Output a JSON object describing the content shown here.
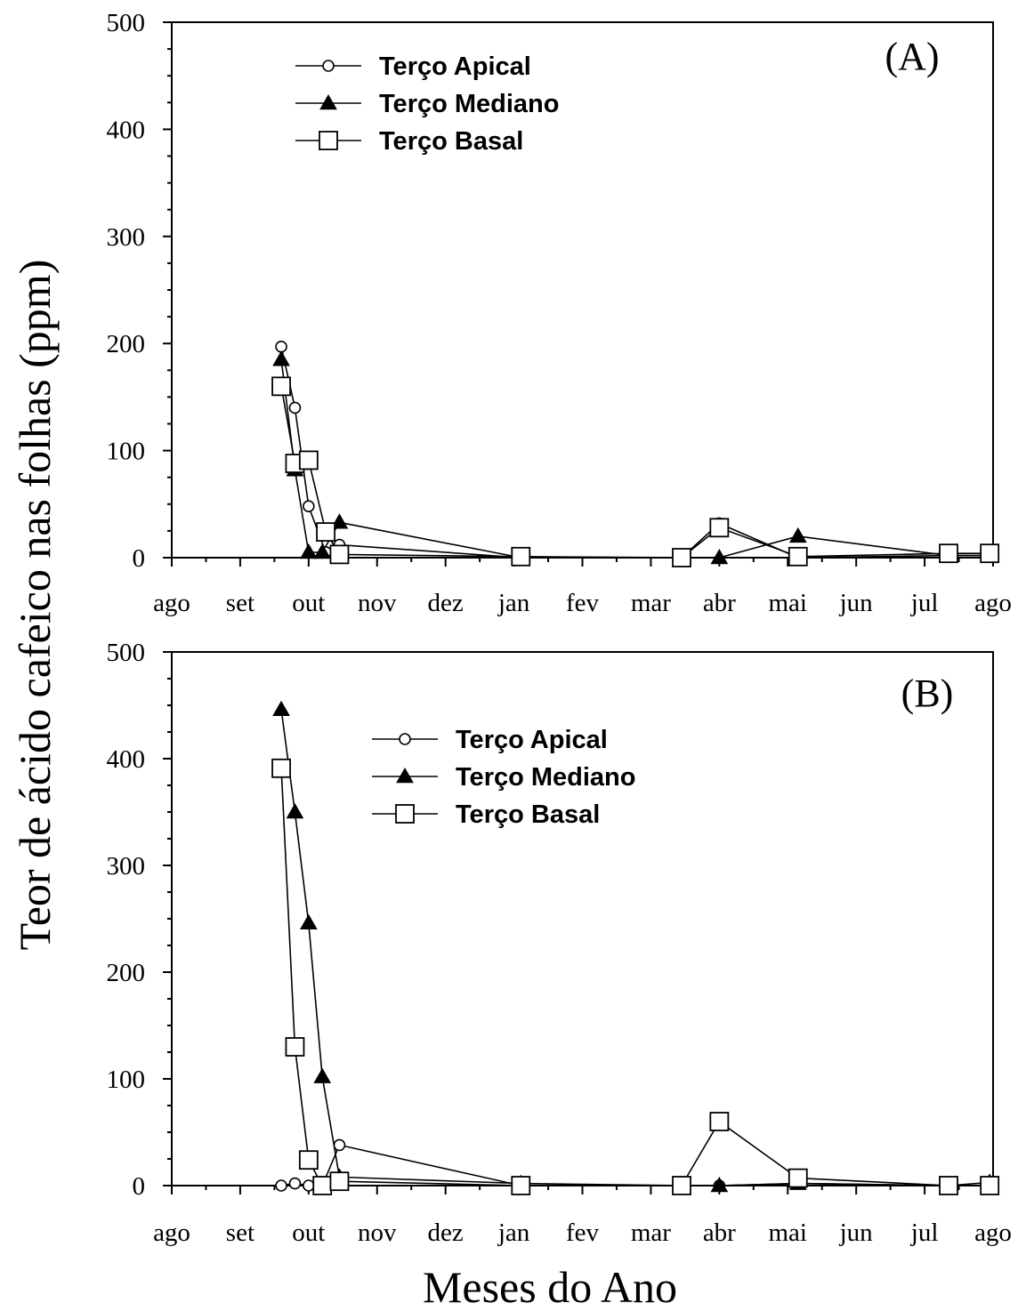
{
  "ylabel": "Teor de ácido cafeico nas folhas (ppm)",
  "xlabel": "Meses do Ano",
  "chart_data": [
    {
      "type": "line",
      "panel_label": "(A)",
      "xlabel": "Meses do Ano",
      "ylabel": "Teor de ácido cafeico nas folhas (ppm)",
      "xlim": [
        0,
        12
      ],
      "ylim": [
        0,
        500
      ],
      "x_tick_labels": [
        "ago",
        "set",
        "out",
        "nov",
        "dez",
        "jan",
        "fev",
        "mar",
        "abr",
        "mai",
        "jun",
        "jul",
        "ago"
      ],
      "y_ticks": [
        0,
        100,
        200,
        300,
        400,
        500
      ],
      "legend_position": "top-center",
      "series": [
        {
          "name": "Terço Apical",
          "marker": "circle-open",
          "x": [
            1.6,
            1.8,
            2.0,
            2.25,
            2.45,
            5.1,
            7.45,
            8.0,
            9.15,
            11.35,
            11.95
          ],
          "y": [
            197,
            140,
            48,
            5,
            12,
            0,
            0,
            32,
            0,
            2,
            2
          ]
        },
        {
          "name": "Terço Mediano",
          "marker": "triangle-filled",
          "x": [
            1.6,
            1.8,
            2.0,
            2.2,
            2.45,
            5.1,
            7.45,
            8.0,
            9.15,
            11.35,
            11.95
          ],
          "y": [
            185,
            82,
            5,
            5,
            33,
            0,
            0,
            0,
            20,
            2,
            2
          ]
        },
        {
          "name": "Terço Basal",
          "marker": "square-open",
          "x": [
            1.6,
            1.8,
            2.0,
            2.25,
            2.45,
            5.1,
            7.45,
            8.0,
            9.15,
            11.35,
            11.95
          ],
          "y": [
            160,
            88,
            91,
            24,
            3,
            1,
            0,
            28,
            1,
            4,
            4
          ]
        }
      ]
    },
    {
      "type": "line",
      "panel_label": "(B)",
      "xlabel": "Meses do Ano",
      "ylabel": "Teor de ácido cafeico nas folhas (ppm)",
      "xlim": [
        0,
        12
      ],
      "ylim": [
        0,
        500
      ],
      "x_tick_labels": [
        "ago",
        "set",
        "out",
        "nov",
        "dez",
        "jan",
        "fev",
        "mar",
        "abr",
        "mai",
        "jun",
        "jul",
        "ago"
      ],
      "y_ticks": [
        0,
        100,
        200,
        300,
        400,
        500
      ],
      "legend_position": "top-center",
      "series": [
        {
          "name": "Terço Apical",
          "marker": "circle-open",
          "x": [
            1.6,
            1.8,
            2.0,
            2.2,
            2.45,
            5.1,
            7.45,
            8.0,
            9.15,
            11.35,
            11.95
          ],
          "y": [
            0,
            2,
            0,
            0,
            38,
            0,
            0,
            0,
            2,
            0,
            0
          ]
        },
        {
          "name": "Terço Mediano",
          "marker": "triangle-filled",
          "x": [
            1.6,
            1.8,
            2.0,
            2.2,
            2.45,
            5.1,
            7.45,
            8.0,
            9.15,
            11.35,
            11.95
          ],
          "y": [
            446,
            350,
            246,
            102,
            8,
            2,
            0,
            0,
            2,
            0,
            3
          ]
        },
        {
          "name": "Terço Basal",
          "marker": "square-open",
          "x": [
            1.6,
            1.8,
            2.0,
            2.2,
            2.45,
            5.1,
            7.45,
            8.0,
            9.15,
            11.35,
            11.95
          ],
          "y": [
            391,
            130,
            24,
            0,
            4,
            0,
            0,
            60,
            7,
            0,
            0
          ]
        }
      ]
    }
  ]
}
